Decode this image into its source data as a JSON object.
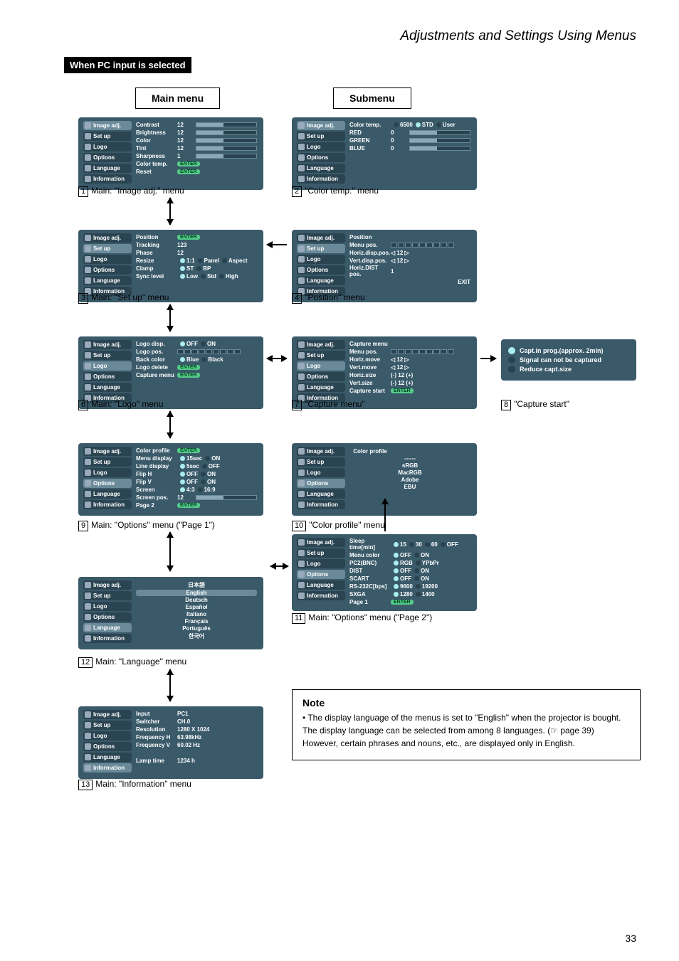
{
  "section_title": "Adjustments and Settings Using Menus",
  "heading": "When PC input is selected",
  "labels": {
    "main": "Main menu",
    "sub": "Submenu"
  },
  "side_items": [
    "Image adj.",
    "Set up",
    "Logo",
    "Options",
    "Language",
    "Information"
  ],
  "menu1": {
    "rows": [
      {
        "k": "Contrast",
        "v": "12",
        "bar": true
      },
      {
        "k": "Brightness",
        "v": "12",
        "bar": true
      },
      {
        "k": "Color",
        "v": "12",
        "bar": true
      },
      {
        "k": "Tint",
        "v": "12",
        "bar": true
      },
      {
        "k": "Sharpness",
        "v": "1",
        "bar": true
      },
      {
        "k": "Color temp.",
        "enter": true
      },
      {
        "k": "Reset",
        "enter": true
      }
    ],
    "cap": "Main: \"Image adj.\" menu",
    "num": "1"
  },
  "menu2": {
    "header": "Color temp.",
    "opts": [
      "6500",
      "STD",
      "User"
    ],
    "rows": [
      {
        "k": "RED",
        "v": "0",
        "bar": true
      },
      {
        "k": "GREEN",
        "v": "0",
        "bar": true
      },
      {
        "k": "BLUE",
        "v": "0",
        "bar": true
      }
    ],
    "cap": "\"Color temp.\" menu",
    "num": "2"
  },
  "menu3": {
    "rows": [
      {
        "k": "Position",
        "enter": true
      },
      {
        "k": "Tracking",
        "v": "123"
      },
      {
        "k": "Phase",
        "v": "12"
      },
      {
        "k": "Resize",
        "opts": [
          "1:1",
          "Panel",
          "Aspect"
        ]
      },
      {
        "k": "Clamp",
        "opts": [
          "ST",
          "BP"
        ]
      },
      {
        "k": "Sync level",
        "opts": [
          "Low",
          "Std",
          "High"
        ]
      }
    ],
    "cap": "Main: \"Set up\" menu",
    "num": "3"
  },
  "menu4": {
    "header": "Position",
    "rows": [
      {
        "k": "Menu pos.",
        "grid": true
      },
      {
        "k": "Horiz.disp.pos.",
        "arrows": true,
        "v": "12"
      },
      {
        "k": "Vert.disp.pos.",
        "arrows": true,
        "v": "12"
      },
      {
        "k": "Horiz.DIST pos.",
        "v": "1"
      }
    ],
    "exit": "EXIT",
    "cap": "\"Position\" menu",
    "num": "4"
  },
  "menu6": {
    "rows": [
      {
        "k": "Logo disp.",
        "opts": [
          "OFF",
          "ON"
        ]
      },
      {
        "k": "Logo pos.",
        "grid": true
      },
      {
        "k": "Back color",
        "opts": [
          "Blue",
          "Black"
        ]
      },
      {
        "k": "Logo delete",
        "enter": true
      },
      {
        "k": "Capture menu",
        "enter": true
      }
    ],
    "cap": "Main: \"Logo\" menu",
    "num": "6"
  },
  "menu7": {
    "header": "Capture menu",
    "rows": [
      {
        "k": "Menu pos.",
        "grid": true
      },
      {
        "k": "Horiz.move",
        "arrows": true
      },
      {
        "k": "Vert.move",
        "arrows": true
      },
      {
        "k": "Horiz.size",
        "v": "(-)   12   (+)"
      },
      {
        "k": "Vert.size",
        "v": "(-)   12   (+)"
      },
      {
        "k": "Capture start",
        "enter": true
      }
    ],
    "cap": "\"Capture menu\"",
    "num": "7"
  },
  "menu8": {
    "rows": [
      {
        "on": true,
        "t": "Capt.in prog.(approx. 2min)"
      },
      {
        "t": "Signal can not be captured"
      },
      {
        "t": "Reduce capt.size"
      }
    ],
    "cap": "\"Capture start\"",
    "num": "8"
  },
  "menu9": {
    "rows": [
      {
        "k": "Color profile",
        "enter": true
      },
      {
        "k": "Menu display",
        "opts": [
          "15sec",
          "ON"
        ]
      },
      {
        "k": "Line display",
        "opts": [
          "5sec",
          "OFF"
        ]
      },
      {
        "k": "Flip H",
        "opts": [
          "OFF",
          "ON"
        ]
      },
      {
        "k": "Flip V",
        "opts": [
          "OFF",
          "ON"
        ]
      },
      {
        "k": "Screen",
        "opts": [
          "4:3",
          "16:9"
        ]
      },
      {
        "k": "Screen pos.",
        "v": "12",
        "bar": true
      },
      {
        "k": "Page 2",
        "enter": true
      }
    ],
    "cap": "Main: \"Options\" menu (\"Page 1\")",
    "num": "9"
  },
  "menu10": {
    "header": "Color profile",
    "center": [
      "------",
      "sRGB",
      "MacRGB",
      "Adobe",
      "EBU"
    ],
    "cap": "\"Color profile\" menu",
    "num": "10"
  },
  "menu11": {
    "rows": [
      {
        "k": "Sleep time[min]",
        "opts": [
          "15",
          "30",
          "60",
          "OFF"
        ]
      },
      {
        "k": "Menu color",
        "opts": [
          "OFF",
          "ON"
        ]
      },
      {
        "k": "PC2(BNC)",
        "opts": [
          "RGB",
          "YPbPr"
        ]
      },
      {
        "k": "DIST",
        "opts": [
          "OFF",
          "ON"
        ]
      },
      {
        "k": "SCART",
        "opts": [
          "OFF",
          "ON"
        ]
      },
      {
        "k": "RS-232C[bps]",
        "opts": [
          "9600",
          "19200"
        ]
      },
      {
        "k": "SXGA",
        "opts": [
          "1280",
          "1400"
        ]
      },
      {
        "k": "Page 1",
        "enter": true
      }
    ],
    "cap": "Main: \"Options\" menu (\"Page 2\")",
    "num": "11"
  },
  "menu12": {
    "center": [
      "日本語",
      "English",
      "Deutsch",
      "Español",
      "Italiano",
      "Français",
      "Português",
      "한국어"
    ],
    "cap": "Main: \"Language\" menu",
    "num": "12"
  },
  "menu13": {
    "rows": [
      {
        "k": "Input",
        "v": "PC1"
      },
      {
        "k": "Switcher",
        "v": "CH.0"
      },
      {
        "k": "Resolution",
        "v": "1280 X 1024"
      },
      {
        "k": "Frequency H",
        "v": "63.98kHz"
      },
      {
        "k": "Frequency V",
        "v": "60.02 Hz"
      },
      {
        "k": "",
        "v": ""
      },
      {
        "k": "Lamp time",
        "v": "1234 h"
      }
    ],
    "cap": "Main: \"Information\" menu",
    "num": "13"
  },
  "note": {
    "title": "Note",
    "body": "• The display language of the menus is set to \"English\" when the projector is bought. The display language can be selected from among 8 languages. (☞ page 39)\nHowever, certain phrases and nouns, etc., are displayed only in English."
  },
  "page_number": "33",
  "enter_label": "ENTER",
  "colors": {
    "menu_bg": "#3a5a6a",
    "side_bg": "#2b4452",
    "side_sel": "#6a8a9a",
    "bar_bg": "#294250",
    "bar_fill": "#8aa8b8"
  }
}
